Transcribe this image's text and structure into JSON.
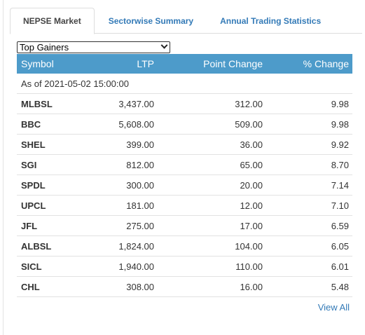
{
  "tabs": [
    {
      "label": "NEPSE Market",
      "active": true
    },
    {
      "label": "Sectorwise Summary",
      "active": false
    },
    {
      "label": "Annual Trading Statistics",
      "active": false
    }
  ],
  "filter": {
    "selected": "Top Gainers"
  },
  "table": {
    "headers": {
      "symbol": "Symbol",
      "ltp": "LTP",
      "point_change": "Point Change",
      "pct_change": "% Change"
    },
    "as_of": "As of 2021-05-02 15:00:00",
    "rows": [
      {
        "symbol": "MLBSL",
        "ltp": "3,437.00",
        "point_change": "312.00",
        "pct_change": "9.98"
      },
      {
        "symbol": "BBC",
        "ltp": "5,608.00",
        "point_change": "509.00",
        "pct_change": "9.98"
      },
      {
        "symbol": "SHEL",
        "ltp": "399.00",
        "point_change": "36.00",
        "pct_change": "9.92"
      },
      {
        "symbol": "SGI",
        "ltp": "812.00",
        "point_change": "65.00",
        "pct_change": "8.70"
      },
      {
        "symbol": "SPDL",
        "ltp": "300.00",
        "point_change": "20.00",
        "pct_change": "7.14"
      },
      {
        "symbol": "UPCL",
        "ltp": "181.00",
        "point_change": "12.00",
        "pct_change": "7.10"
      },
      {
        "symbol": "JFL",
        "ltp": "275.00",
        "point_change": "17.00",
        "pct_change": "6.59"
      },
      {
        "symbol": "ALBSL",
        "ltp": "1,824.00",
        "point_change": "104.00",
        "pct_change": "6.05"
      },
      {
        "symbol": "SICL",
        "ltp": "1,940.00",
        "point_change": "110.00",
        "pct_change": "6.01"
      },
      {
        "symbol": "CHL",
        "ltp": "308.00",
        "point_change": "16.00",
        "pct_change": "5.48"
      }
    ]
  },
  "view_all_label": "View All",
  "colors": {
    "header_bg": "#4d9bca",
    "link": "#337ab7"
  }
}
